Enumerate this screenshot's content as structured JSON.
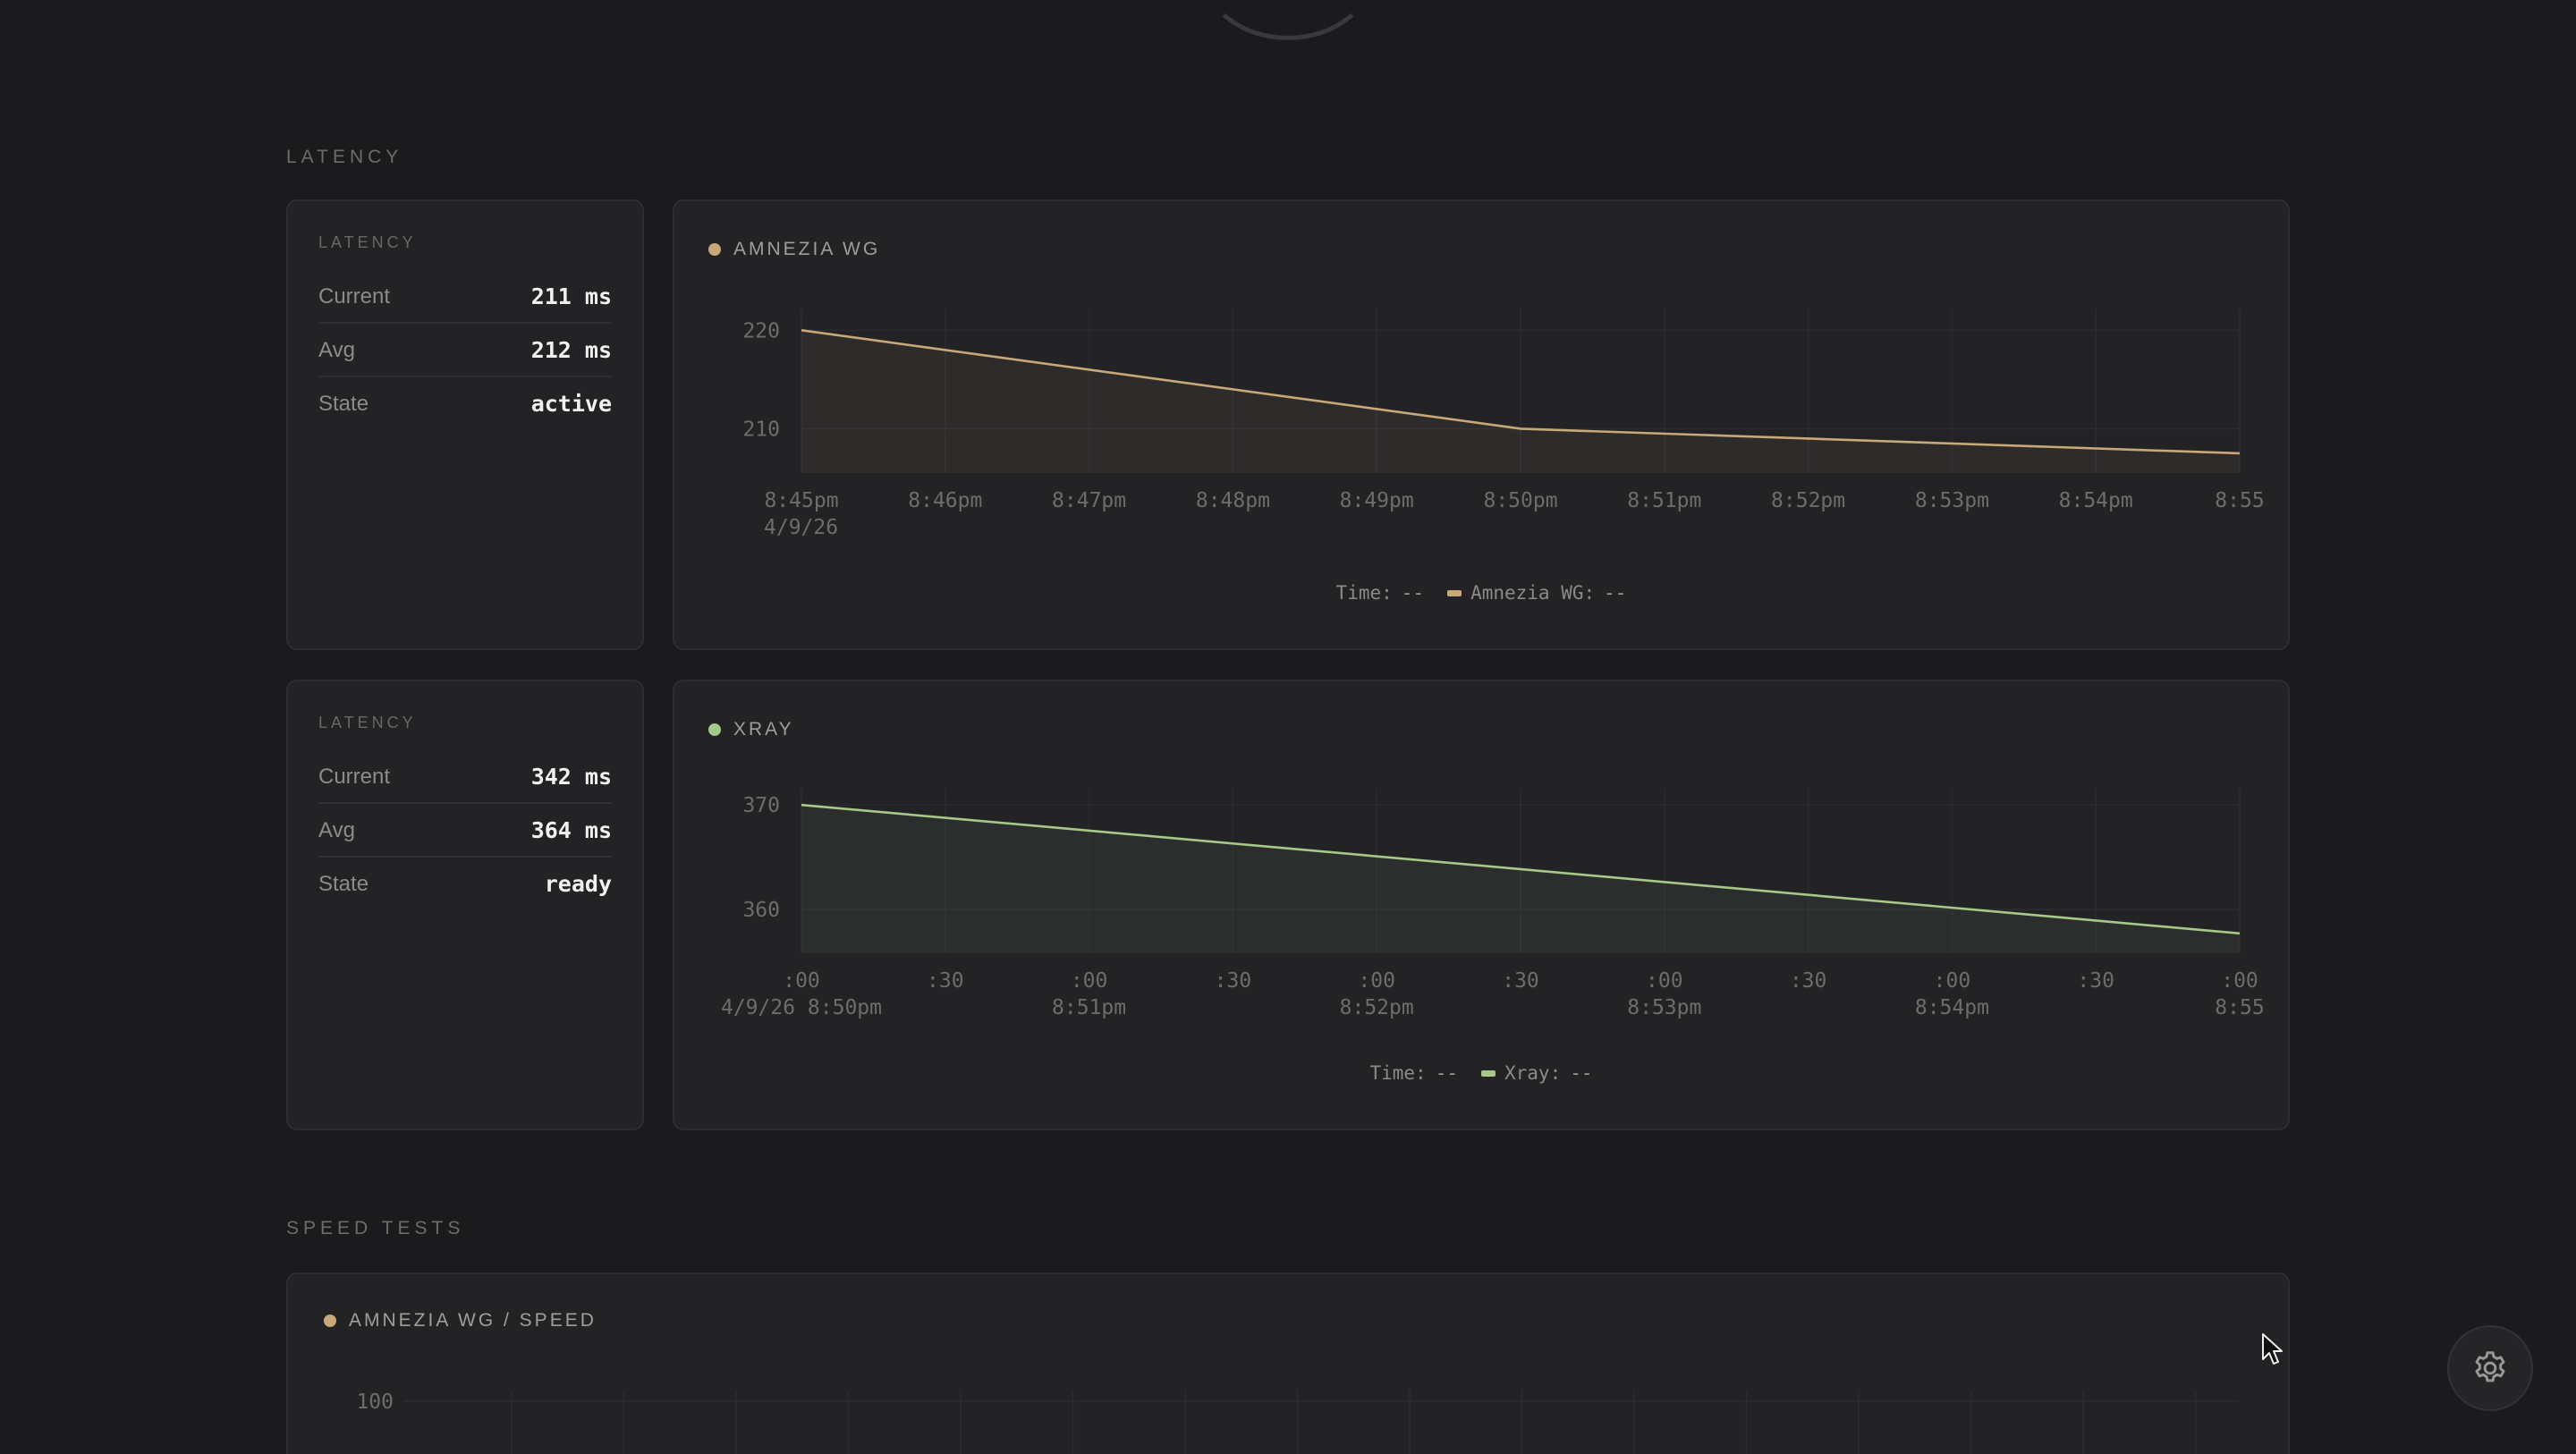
{
  "sections": {
    "latency_label": "LATENCY",
    "speed_label": "SPEED TESTS"
  },
  "cards": [
    {
      "stats": {
        "title": "LATENCY",
        "rows": [
          {
            "key": "Current",
            "value": "211 ms"
          },
          {
            "key": "Avg",
            "value": "212 ms"
          },
          {
            "key": "State",
            "value": "active"
          }
        ]
      },
      "chart": {
        "title": "AMNEZIA WG",
        "color": "#c8a878"
      },
      "legend": {
        "time_label": "Time:",
        "time_value": "--",
        "series_label": "Amnezia WG:",
        "series_value": "--"
      }
    },
    {
      "stats": {
        "title": "LATENCY",
        "rows": [
          {
            "key": "Current",
            "value": "342 ms"
          },
          {
            "key": "Avg",
            "value": "364 ms"
          },
          {
            "key": "State",
            "value": "ready"
          }
        ]
      },
      "chart": {
        "title": "XRAY",
        "color": "#a6c889"
      },
      "legend": {
        "time_label": "Time:",
        "time_value": "--",
        "series_label": "Xray:",
        "series_value": "--"
      }
    }
  ],
  "speed_card": {
    "title": "AMNEZIA WG / SPEED",
    "color": "#c8a878",
    "y_tick": "100"
  },
  "icons": {
    "settings": "gear-icon",
    "cursor": "cursor-icon"
  },
  "chart_data": [
    {
      "type": "area",
      "title": "AMNEZIA WG",
      "series": [
        {
          "name": "Amnezia WG",
          "x": [
            "8:45pm",
            "8:50pm",
            "8:55"
          ],
          "values": [
            220,
            210,
            207.5
          ]
        }
      ],
      "x_ticks": [
        "8:45pm",
        "8:46pm",
        "8:47pm",
        "8:48pm",
        "8:49pm",
        "8:50pm",
        "8:51pm",
        "8:52pm",
        "8:53pm",
        "8:54pm",
        "8:55"
      ],
      "x_ticks_sub": [
        "4/9/26",
        "",
        "",
        "",
        "",
        "",
        "",
        "",
        "",
        "",
        ""
      ],
      "y_ticks": [
        220,
        210
      ],
      "ylim": [
        205.5,
        221.3
      ],
      "grid": true
    },
    {
      "type": "area",
      "title": "XRAY",
      "series": [
        {
          "name": "Xray",
          "x": [
            "8:50pm",
            "8:55"
          ],
          "values": [
            370,
            357.7
          ]
        }
      ],
      "x_ticks": [
        ":00",
        ":30",
        ":00",
        ":30",
        ":00",
        ":30",
        ":00",
        ":30",
        ":00",
        ":30",
        ":00"
      ],
      "x_ticks_sub": [
        "4/9/26 8:50pm",
        "",
        "8:51pm",
        "",
        "8:52pm",
        "",
        "8:53pm",
        "",
        "8:54pm",
        "",
        "8:55"
      ],
      "y_ticks": [
        370,
        360
      ],
      "ylim": [
        355.8,
        370.7
      ],
      "grid": true
    }
  ]
}
